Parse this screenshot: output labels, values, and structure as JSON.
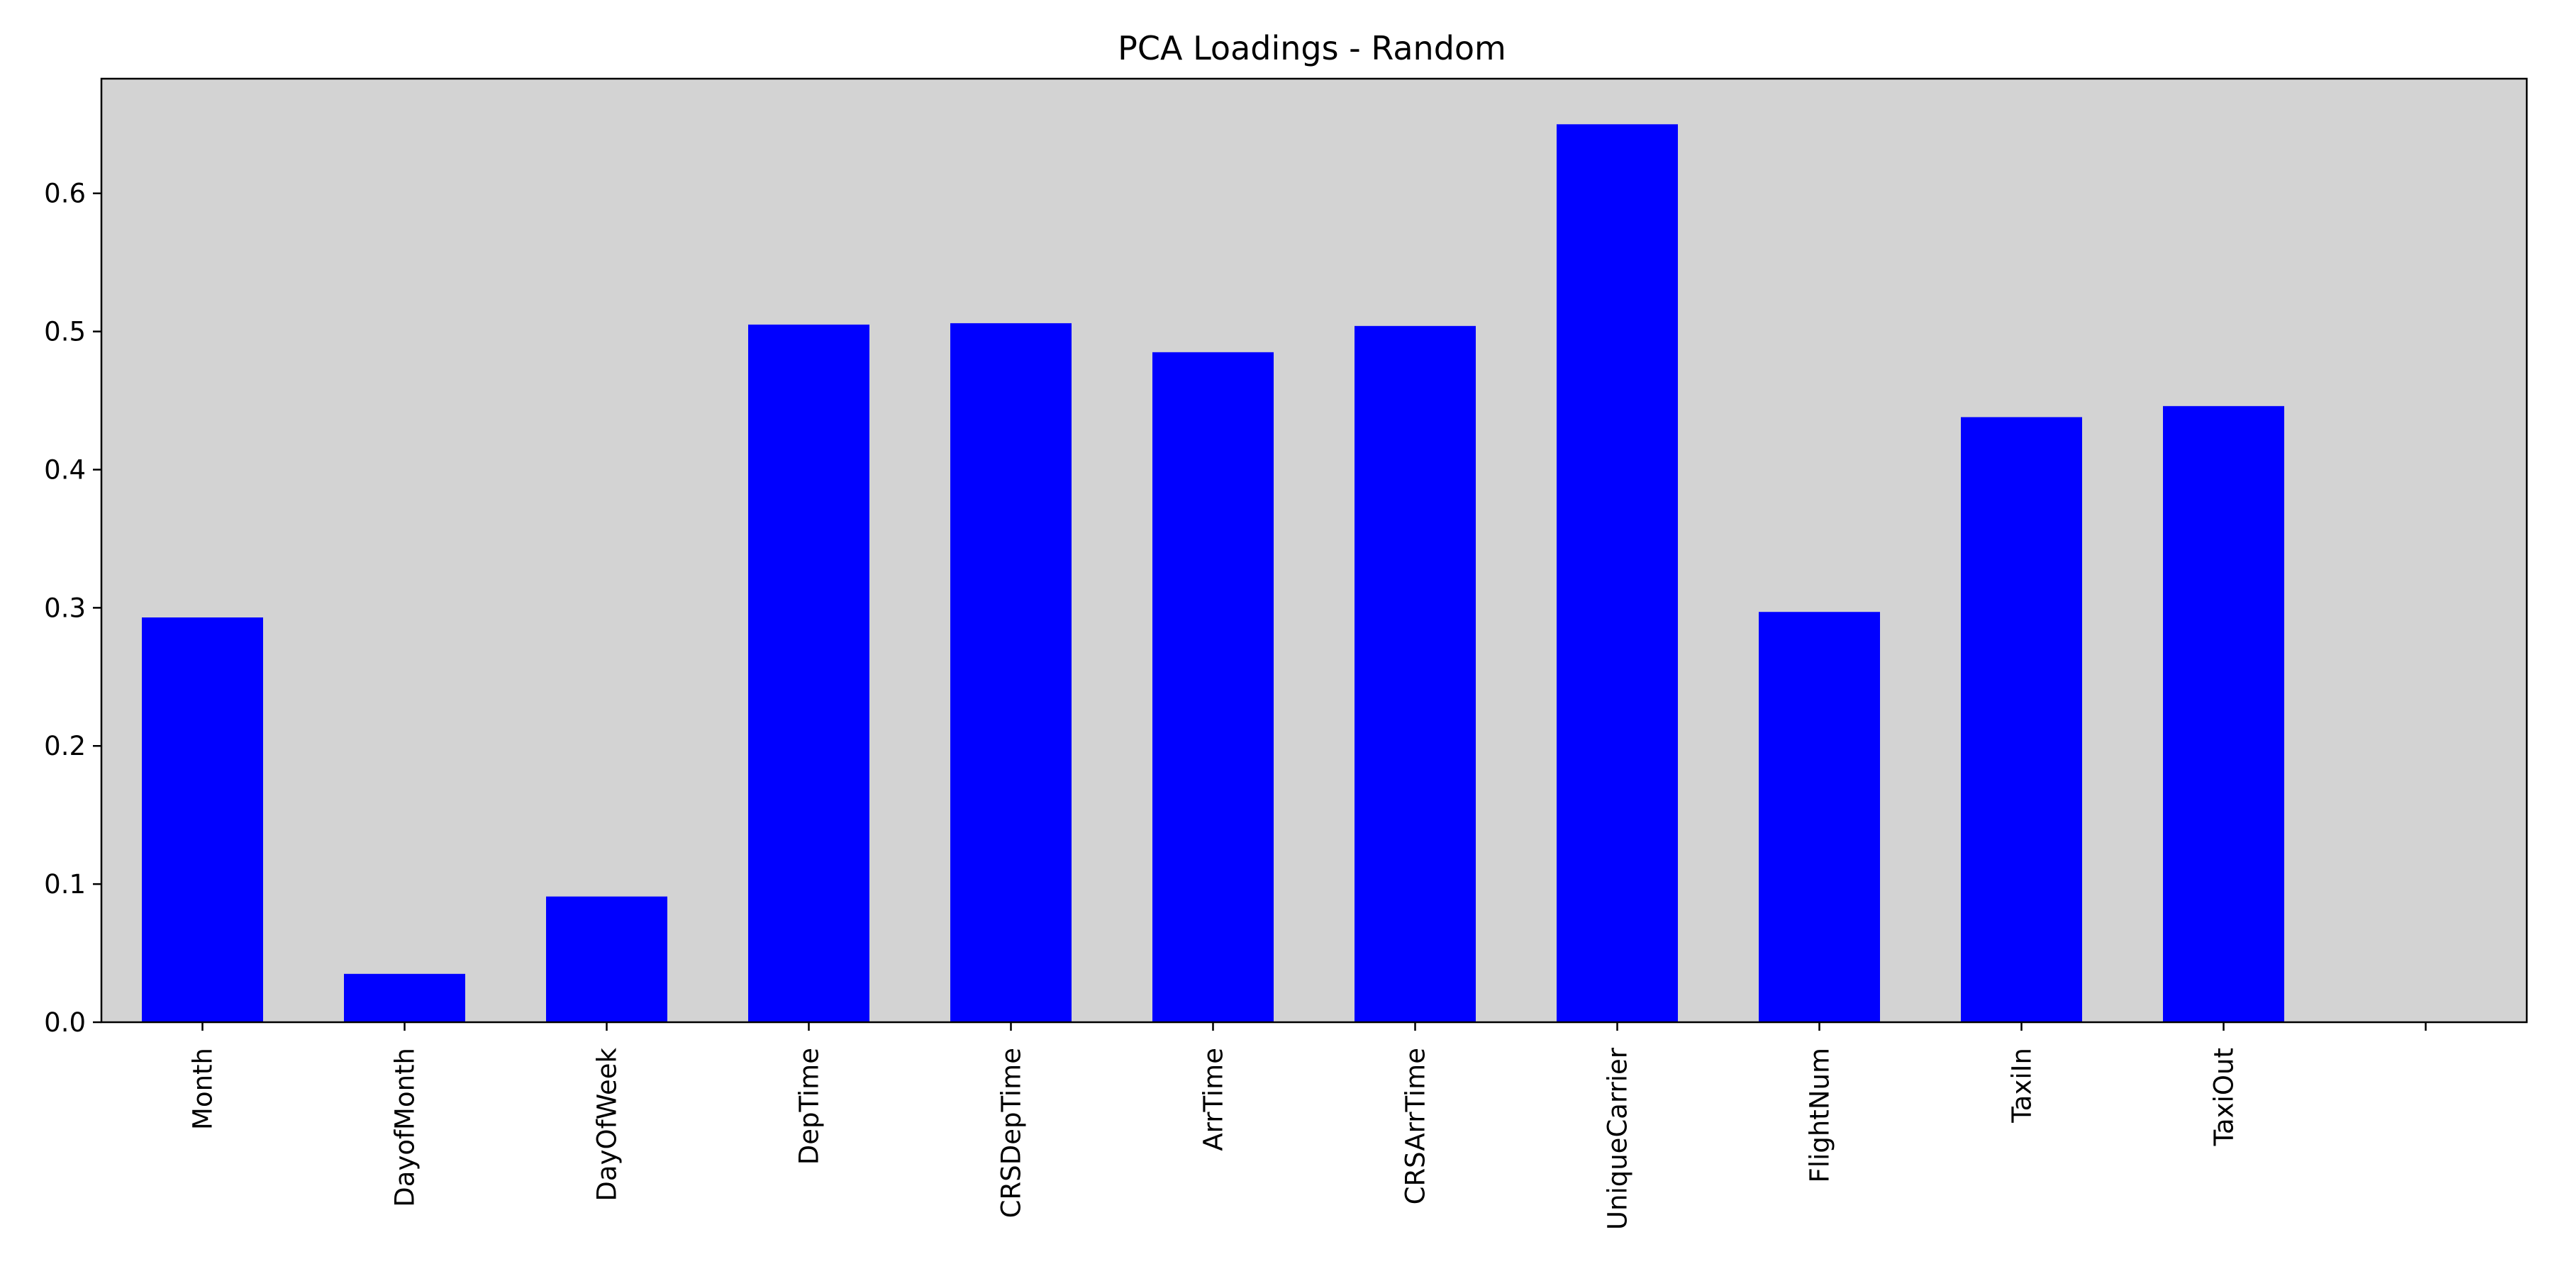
{
  "chart_data": {
    "type": "bar",
    "title": "PCA Loadings - Random",
    "xlabel": "",
    "ylabel": "",
    "categories": [
      "Month",
      "DayofMonth",
      "DayOfWeek",
      "DepTime",
      "CRSDepTime",
      "ArrTime",
      "CRSArrTime",
      "UniqueCarrier",
      "FlightNum",
      "TaxiIn",
      "TaxiOut"
    ],
    "values": [
      0.293,
      0.035,
      0.091,
      0.505,
      0.506,
      0.485,
      0.504,
      0.65,
      0.297,
      0.438,
      0.446
    ],
    "ylim": [
      0.0,
      0.683
    ],
    "yticks": [
      "0.0",
      "0.1",
      "0.2",
      "0.3",
      "0.4",
      "0.5",
      "0.6"
    ],
    "bar_color": "#0000ff",
    "plot_background": "#d3d3d3",
    "grid": false,
    "legend": "none"
  }
}
